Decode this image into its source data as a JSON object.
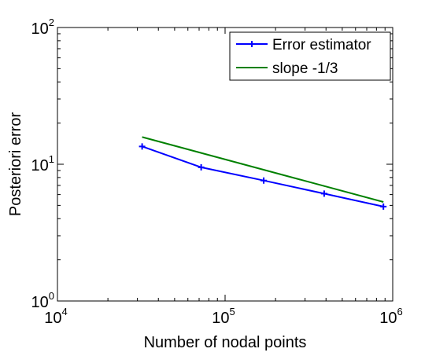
{
  "chart_data": {
    "type": "line",
    "xlabel": "Number of nodal points",
    "ylabel": "Posteriori error",
    "xscale": "log",
    "yscale": "log",
    "xlim": [
      10000,
      1000000
    ],
    "ylim": [
      1,
      100
    ],
    "grid": false,
    "legend_position": "top-right",
    "x_ticks": [
      {
        "base": "10",
        "exp": "4"
      },
      {
        "base": "10",
        "exp": "5"
      },
      {
        "base": "10",
        "exp": "6"
      }
    ],
    "y_ticks": [
      {
        "base": "10",
        "exp": "0"
      },
      {
        "base": "10",
        "exp": "1"
      },
      {
        "base": "10",
        "exp": "2"
      }
    ],
    "series": [
      {
        "name": "Error estimator",
        "color": "#0000ff",
        "marker": "plus",
        "x": [
          32000,
          72000,
          170000,
          390000,
          880000
        ],
        "y": [
          13.5,
          9.5,
          7.6,
          6.1,
          4.9
        ]
      },
      {
        "name": "slope -1/3",
        "color": "#008000",
        "marker": "none",
        "x": [
          32000,
          880000
        ],
        "y": [
          15.8,
          5.3
        ]
      }
    ]
  }
}
